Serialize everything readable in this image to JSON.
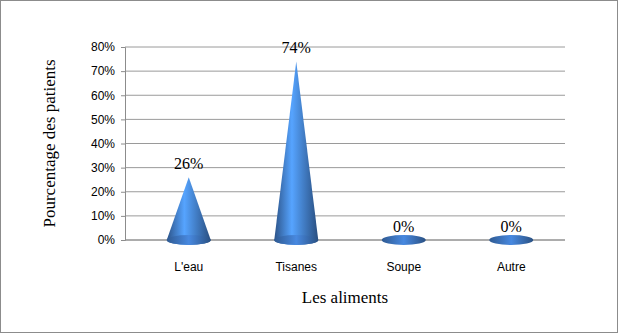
{
  "chart_data": {
    "type": "bar",
    "marker": "cone",
    "x_label": "Les aliments",
    "y_label": "Pourcentage des patients",
    "categories": [
      "L'eau",
      "Tisanes",
      "Soupe",
      "Autre"
    ],
    "values": [
      26,
      74,
      0,
      0
    ],
    "value_labels": [
      "26%",
      "74%",
      "0%",
      "0%"
    ],
    "data_labels": true,
    "color": "#3a6fb5",
    "ylim": [
      0,
      80
    ],
    "yticks": [
      {
        "value": 0,
        "label": "0%"
      },
      {
        "value": 10,
        "label": "10%"
      },
      {
        "value": 20,
        "label": "20%"
      },
      {
        "value": 30,
        "label": "30%"
      },
      {
        "value": 40,
        "label": "40%"
      },
      {
        "value": 50,
        "label": "50%"
      },
      {
        "value": 60,
        "label": "60%"
      },
      {
        "value": 70,
        "label": "70%"
      },
      {
        "value": 80,
        "label": "80%"
      }
    ],
    "grid": true
  }
}
